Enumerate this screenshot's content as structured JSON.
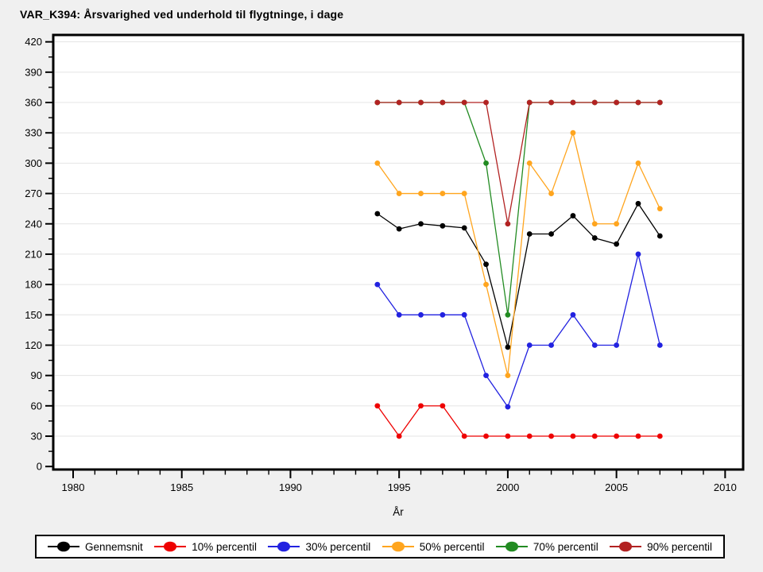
{
  "title": "VAR_K394: Årsvarighed ved underhold til flygtninge, i dage",
  "chart_data": {
    "type": "line",
    "title": "VAR_K394: Årsvarighed ved underhold til flygtninge, i dage",
    "xlabel": "År",
    "ylabel": "",
    "x": [
      1994,
      1995,
      1996,
      1997,
      1998,
      1999,
      2000,
      2001,
      2002,
      2003,
      2004,
      2005,
      2006,
      2007
    ],
    "series": [
      {
        "name": "Gennemsnit",
        "color": "#000000",
        "values": [
          250,
          235,
          240,
          238,
          236,
          200,
          118,
          230,
          230,
          248,
          226,
          220,
          260,
          228
        ]
      },
      {
        "name": "10% percentil",
        "color": "#ee0000",
        "values": [
          60,
          30,
          60,
          60,
          30,
          30,
          30,
          30,
          30,
          30,
          30,
          30,
          30,
          30
        ]
      },
      {
        "name": "30% percentil",
        "color": "#2222e0",
        "values": [
          180,
          150,
          150,
          150,
          150,
          90,
          59,
          120,
          120,
          150,
          120,
          120,
          210,
          120
        ]
      },
      {
        "name": "50% percentil",
        "color": "#ffa51e",
        "values": [
          300,
          270,
          270,
          270,
          270,
          180,
          90,
          300,
          270,
          330,
          240,
          240,
          300,
          255
        ]
      },
      {
        "name": "70% percentil",
        "color": "#228b22",
        "values": [
          360,
          360,
          360,
          360,
          360,
          300,
          150,
          360,
          360,
          360,
          360,
          360,
          360,
          360
        ]
      },
      {
        "name": "90% percentil",
        "color": "#b22222",
        "values": [
          360,
          360,
          360,
          360,
          360,
          360,
          240,
          360,
          360,
          360,
          360,
          360,
          360,
          360
        ]
      }
    ],
    "xticks": [
      1980,
      1985,
      1990,
      1995,
      2000,
      2005,
      2010
    ],
    "yticks": [
      0,
      30,
      60,
      90,
      120,
      150,
      180,
      210,
      240,
      270,
      300,
      330,
      360,
      390,
      420
    ],
    "xlim": [
      1979.1,
      2010.8
    ],
    "ylim": [
      0,
      424
    ],
    "grid": "horizontal-major",
    "legend_position": "bottom",
    "background_color": "#f0f0f0",
    "plot_background_color": "#ffffff",
    "gridline_color": "#e4e4e4"
  }
}
